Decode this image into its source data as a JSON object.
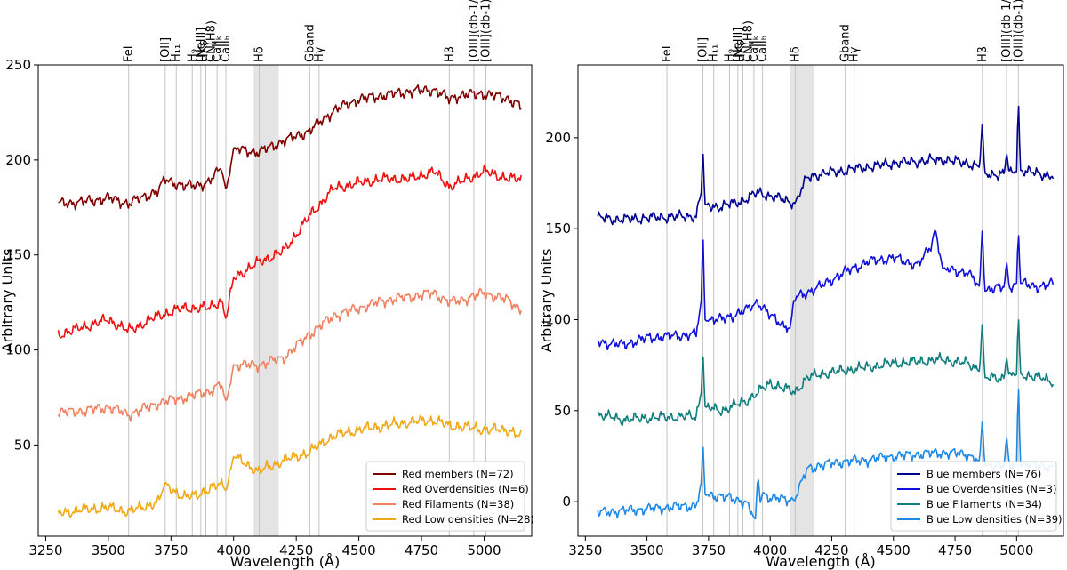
{
  "chart_data": [
    {
      "type": "line",
      "panel": "left",
      "xlabel": "Wavelength (Å)",
      "ylabel": "Arbitrary Units",
      "xlim": [
        3220,
        5190
      ],
      "ylim": [
        2,
        250
      ],
      "xticks": [
        3250,
        3500,
        3750,
        4000,
        4250,
        4500,
        4750,
        5000
      ],
      "yticks": [
        50,
        100,
        150,
        200,
        250
      ],
      "grid": false,
      "legend_position": "lower-right",
      "shaded_band": [
        4080,
        4180
      ],
      "spectral_lines": [
        {
          "label": "FeI",
          "x": 3581
        },
        {
          "label": "[OII]",
          "x": 3727
        },
        {
          "label": "H₁₁",
          "x": 3771
        },
        {
          "label": "H₉",
          "x": 3835
        },
        {
          "label": "[NeIII]",
          "x": 3869
        },
        {
          "label": "HKs",
          "x": 3889
        },
        {
          "label": "CN(H8)",
          "x": 3889
        },
        {
          "label": "CaIIₖ",
          "x": 3934
        },
        {
          "label": "CaIIₕ",
          "x": 3969
        },
        {
          "label": "Hδ",
          "x": 4102
        },
        {
          "label": "Gband",
          "x": 4304
        },
        {
          "label": "Hγ",
          "x": 4341
        },
        {
          "label": "Hβ",
          "x": 4861
        },
        {
          "label": "[OIII](db-1/3)",
          "x": 4959
        },
        {
          "label": "[OIII](db-1)",
          "x": 5007
        }
      ],
      "series": [
        {
          "name": "Red members (N=72)",
          "color": "#800000",
          "x": [
            3300,
            3400,
            3500,
            3580,
            3700,
            3727,
            3800,
            3900,
            3950,
            3970,
            4000,
            4100,
            4200,
            4300,
            4400,
            4500,
            4600,
            4700,
            4800,
            4861,
            4900,
            5000,
            5100,
            5150
          ],
          "y": [
            177,
            178,
            180,
            177,
            184,
            190,
            186,
            188,
            196,
            184,
            206,
            204,
            210,
            215,
            226,
            232,
            234,
            236,
            237,
            232,
            234,
            235,
            232,
            228
          ]
        },
        {
          "name": "Red Overdensities (N=6)",
          "color": "#ee1111",
          "x": [
            3300,
            3400,
            3500,
            3580,
            3700,
            3800,
            3900,
            3950,
            3970,
            4000,
            4100,
            4200,
            4300,
            4400,
            4500,
            4600,
            4700,
            4800,
            4861,
            4900,
            5000,
            5100,
            5150
          ],
          "y": [
            108,
            112,
            116,
            110,
            118,
            122,
            122,
            126,
            116,
            138,
            146,
            152,
            170,
            185,
            188,
            190,
            190,
            194,
            186,
            188,
            194,
            190,
            190
          ]
        },
        {
          "name": "Red Filaments (N=38)",
          "color": "#f08060",
          "x": [
            3300,
            3400,
            3500,
            3580,
            3700,
            3800,
            3900,
            3950,
            3970,
            4000,
            4100,
            4200,
            4300,
            4400,
            4500,
            4600,
            4700,
            4800,
            4861,
            4900,
            5000,
            5100,
            5150
          ],
          "y": [
            67,
            68,
            70,
            66,
            72,
            75,
            78,
            82,
            72,
            92,
            92,
            96,
            108,
            118,
            122,
            126,
            128,
            130,
            125,
            126,
            130,
            126,
            121
          ]
        },
        {
          "name": "Red Low densities (N=28)",
          "color": "#f0a818",
          "x": [
            3300,
            3400,
            3500,
            3580,
            3700,
            3727,
            3800,
            3900,
            3950,
            3970,
            4000,
            4100,
            4200,
            4300,
            4400,
            4500,
            4600,
            4700,
            4800,
            4861,
            4900,
            5000,
            5100,
            5150
          ],
          "y": [
            14,
            16,
            17,
            15,
            20,
            30,
            22,
            26,
            30,
            26,
            44,
            36,
            42,
            46,
            55,
            58,
            60,
            62,
            63,
            60,
            60,
            58,
            58,
            54
          ]
        }
      ]
    },
    {
      "type": "line",
      "panel": "right",
      "xlabel": "Wavelength (Å)",
      "ylabel": "Arbitrary Units",
      "xlim": [
        3220,
        5190
      ],
      "ylim": [
        -19,
        240
      ],
      "xticks": [
        3250,
        3500,
        3750,
        4000,
        4250,
        4500,
        4750,
        5000
      ],
      "yticks": [
        0,
        50,
        100,
        150,
        200
      ],
      "grid": false,
      "legend_position": "lower-right",
      "shaded_band": [
        4080,
        4180
      ],
      "spectral_lines": [
        {
          "label": "FeI",
          "x": 3581
        },
        {
          "label": "[OII]",
          "x": 3727
        },
        {
          "label": "H₁₁",
          "x": 3771
        },
        {
          "label": "H₉",
          "x": 3835
        },
        {
          "label": "[NeIII]",
          "x": 3869
        },
        {
          "label": "HKs",
          "x": 3889
        },
        {
          "label": "CN(H8)",
          "x": 3889
        },
        {
          "label": "CaIIₖ",
          "x": 3934
        },
        {
          "label": "CaIIₕ",
          "x": 3969
        },
        {
          "label": "Hδ",
          "x": 4102
        },
        {
          "label": "Gband",
          "x": 4304
        },
        {
          "label": "Hγ",
          "x": 4341
        },
        {
          "label": "Hβ",
          "x": 4861
        },
        {
          "label": "[OIII](db-1/3)",
          "x": 4959
        },
        {
          "label": "[OIII](db-1)",
          "x": 5007
        }
      ],
      "series": [
        {
          "name": "Blue members (N=76)",
          "color": "#000090",
          "x": [
            3300,
            3400,
            3500,
            3700,
            3720,
            3727,
            3735,
            3800,
            3900,
            3950,
            4000,
            4100,
            4150,
            4200,
            4300,
            4400,
            4500,
            4600,
            4700,
            4800,
            4850,
            4861,
            4870,
            4950,
            4959,
            4970,
            5000,
            5007,
            5015,
            5100,
            5150
          ],
          "y": [
            156,
            155,
            156,
            157,
            170,
            195,
            163,
            162,
            166,
            170,
            168,
            164,
            178,
            180,
            182,
            184,
            186,
            187,
            188,
            186,
            184,
            209,
            180,
            180,
            192,
            180,
            182,
            222,
            182,
            180,
            179
          ]
        },
        {
          "name": "Blue Overdensities (N=3)",
          "color": "#1010d8",
          "x": [
            3300,
            3400,
            3500,
            3700,
            3720,
            3727,
            3735,
            3800,
            3900,
            3950,
            4000,
            4080,
            4100,
            4200,
            4300,
            4400,
            4500,
            4600,
            4650,
            4670,
            4700,
            4800,
            4850,
            4861,
            4870,
            4950,
            4959,
            4970,
            5000,
            5007,
            5015,
            5100,
            5150
          ],
          "y": [
            88,
            86,
            90,
            92,
            110,
            150,
            100,
            100,
            105,
            110,
            102,
            95,
            112,
            118,
            126,
            132,
            134,
            130,
            140,
            150,
            128,
            126,
            118,
            152,
            116,
            118,
            132,
            118,
            120,
            150,
            120,
            118,
            120
          ]
        },
        {
          "name": "Blue Filaments (N=34)",
          "color": "#0f7d7d",
          "x": [
            3300,
            3400,
            3500,
            3700,
            3720,
            3727,
            3735,
            3800,
            3900,
            3950,
            4000,
            4100,
            4150,
            4200,
            4300,
            4400,
            4500,
            4600,
            4700,
            4800,
            4850,
            4861,
            4870,
            4950,
            4959,
            4970,
            5000,
            5007,
            5015,
            5100,
            5150
          ],
          "y": [
            48,
            45,
            46,
            47,
            60,
            84,
            52,
            50,
            55,
            60,
            65,
            60,
            68,
            70,
            72,
            74,
            76,
            77,
            78,
            76,
            72,
            100,
            68,
            68,
            80,
            68,
            70,
            104,
            70,
            68,
            66
          ]
        },
        {
          "name": "Blue Low densities (N=39)",
          "color": "#1e88e5",
          "x": [
            3300,
            3400,
            3500,
            3700,
            3720,
            3727,
            3735,
            3800,
            3900,
            3940,
            3950,
            3960,
            3970,
            4000,
            4100,
            4150,
            4200,
            4300,
            4400,
            4500,
            4600,
            4700,
            4800,
            4850,
            4861,
            4870,
            4950,
            4959,
            4970,
            5000,
            5007,
            5015,
            5100,
            5150
          ],
          "y": [
            -6,
            -5,
            -4,
            -2,
            10,
            33,
            4,
            3,
            0,
            -10,
            15,
            0,
            5,
            2,
            1,
            18,
            20,
            22,
            23,
            25,
            26,
            27,
            26,
            22,
            46,
            20,
            20,
            36,
            20,
            20,
            68,
            20,
            20,
            18
          ]
        }
      ]
    }
  ]
}
